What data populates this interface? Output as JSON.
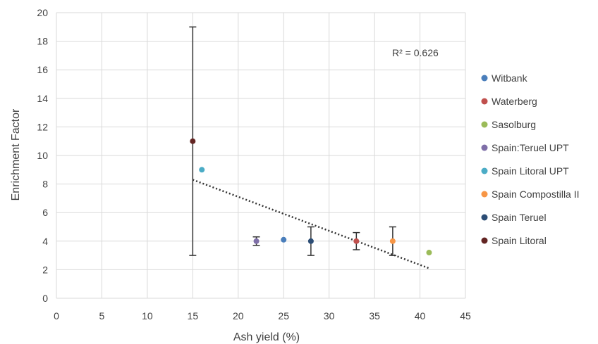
{
  "chart_data": {
    "type": "scatter",
    "title": "",
    "xlabel": "Ash yield (%)",
    "ylabel": "Enrichment Factor",
    "xlim": [
      0,
      45
    ],
    "ylim": [
      0,
      20
    ],
    "x_ticks": [
      "0",
      "5",
      "10",
      "15",
      "20",
      "25",
      "30",
      "35",
      "40",
      "45"
    ],
    "y_ticks": [
      "0",
      "2",
      "4",
      "6",
      "8",
      "10",
      "12",
      "14",
      "16",
      "18",
      "20"
    ],
    "grid": true,
    "legend_position": "right",
    "series": [
      {
        "name": "Witbank",
        "color": "#4a7ebb",
        "points": [
          {
            "x": 25,
            "y": 4.1
          }
        ]
      },
      {
        "name": "Waterberg",
        "color": "#c0504d",
        "points": [
          {
            "x": 33,
            "y": 4.0,
            "err_low": 3.4,
            "err_high": 4.6
          }
        ]
      },
      {
        "name": "Sasolburg",
        "color": "#9bbb59",
        "points": [
          {
            "x": 41,
            "y": 3.2
          }
        ]
      },
      {
        "name": "Spain:Teruel UPT",
        "color": "#7f6fa8",
        "points": [
          {
            "x": 22,
            "y": 4.0,
            "err_low": 3.7,
            "err_high": 4.3
          }
        ]
      },
      {
        "name": "Spain Litoral UPT",
        "color": "#4bacc6",
        "points": [
          {
            "x": 16,
            "y": 9.0
          }
        ]
      },
      {
        "name": "Spain Compostilla II",
        "color": "#f79646",
        "points": [
          {
            "x": 37,
            "y": 4.0,
            "err_low": 3.0,
            "err_high": 5.0
          }
        ]
      },
      {
        "name": "Spain Teruel",
        "color": "#2c4d75",
        "points": [
          {
            "x": 28,
            "y": 4.0,
            "err_low": 3.0,
            "err_high": 5.0
          }
        ]
      },
      {
        "name": "Spain Litoral",
        "color": "#632523",
        "points": [
          {
            "x": 15,
            "y": 11.0,
            "err_low": 3.0,
            "err_high": 19.0
          }
        ]
      }
    ],
    "trendline": {
      "type": "linear",
      "x_start": 15,
      "y_start": 8.3,
      "x_end": 41,
      "y_end": 2.1,
      "color": "#333333"
    },
    "annotation": "R² = 0.626"
  }
}
